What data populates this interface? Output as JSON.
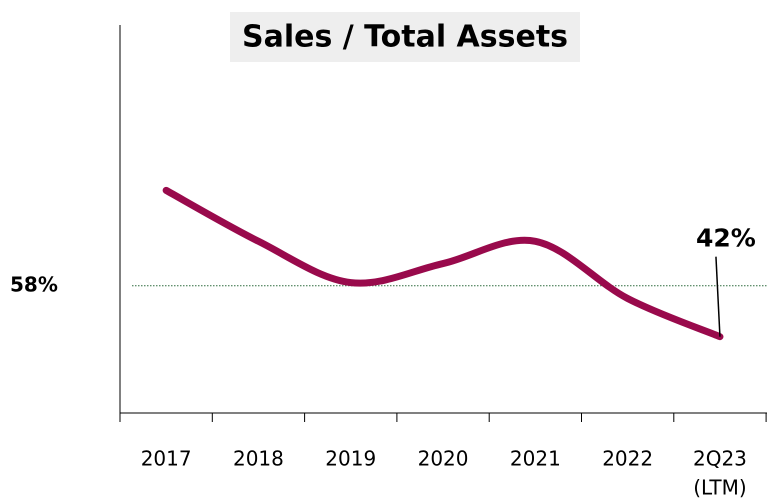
{
  "chart_data": {
    "type": "line",
    "title": "Sales / Total Assets",
    "categories": [
      "2017",
      "2018",
      "2019",
      "2020",
      "2021",
      "2022",
      "2Q23"
    ],
    "category_sublabels": [
      null,
      null,
      null,
      null,
      null,
      null,
      "(LTM)"
    ],
    "values": [
      88,
      72,
      59,
      65,
      72,
      54,
      42
    ],
    "value_labels": [
      null,
      null,
      null,
      null,
      null,
      null,
      "42%"
    ],
    "color": "#990a4c",
    "reference_line": {
      "value": 58,
      "label": "58%",
      "color": "#2e6b3e"
    },
    "ylim": [
      18,
      140
    ]
  }
}
